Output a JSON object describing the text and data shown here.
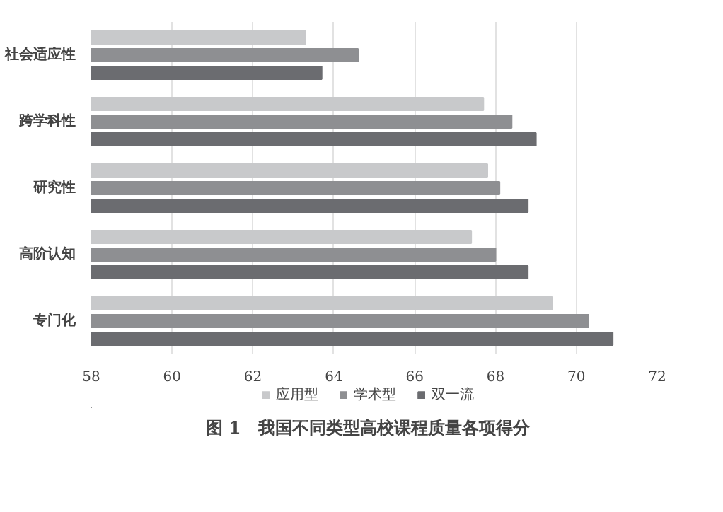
{
  "chart_data": {
    "type": "bar",
    "orientation": "horizontal",
    "title": "图 1　我国不同类型高校课程质量各项得分",
    "categories": [
      "社会适应性",
      "跨学科性",
      "研究性",
      "高阶认知",
      "专门化"
    ],
    "series": [
      {
        "name": "应用型",
        "color": "#c8c9cb",
        "values": [
          63.3,
          67.7,
          67.8,
          67.4,
          69.4
        ]
      },
      {
        "name": "学术型",
        "color": "#8e8f92",
        "values": [
          64.6,
          68.4,
          68.1,
          68.0,
          70.3
        ]
      },
      {
        "name": "双一流",
        "color": "#6b6c70",
        "values": [
          63.7,
          69.0,
          68.8,
          68.8,
          70.9
        ]
      }
    ],
    "xlim": [
      58,
      72
    ],
    "xticks": [
      58,
      60,
      62,
      64,
      66,
      68,
      70,
      72
    ],
    "grid": "x",
    "legend": "bottom"
  }
}
